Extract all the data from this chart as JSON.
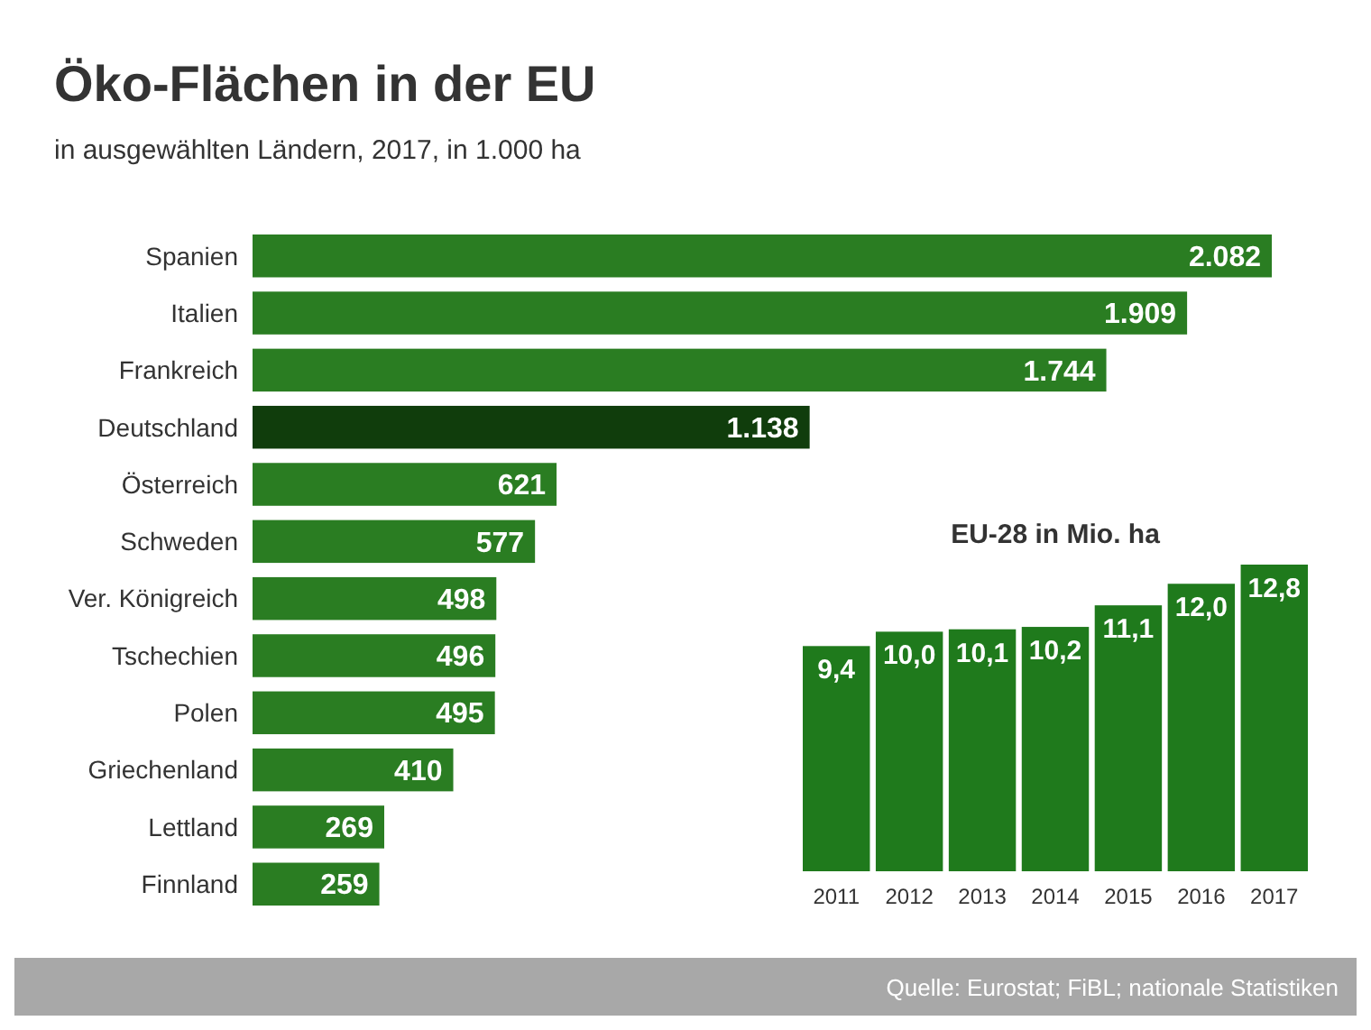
{
  "chart_data": [
    {
      "type": "bar",
      "orientation": "horizontal",
      "title": "Öko-Flächen in der EU",
      "subtitle": "in ausgewählten Ländern, 2017, in 1.000 ha",
      "categories": [
        "Spanien",
        "Italien",
        "Frankreich",
        "Deutschland",
        "Österreich",
        "Schweden",
        "Ver. Königreich",
        "Tschechien",
        "Polen",
        "Griechenland",
        "Lettland",
        "Finnland"
      ],
      "values": [
        2082,
        1909,
        1744,
        1138,
        621,
        577,
        498,
        496,
        495,
        410,
        269,
        259
      ],
      "value_labels": [
        "2.082",
        "1.909",
        "1.744",
        "1.138",
        "621",
        "577",
        "498",
        "496",
        "495",
        "410",
        "269",
        "259"
      ],
      "colors": [
        "#2a7d22",
        "#2a7d22",
        "#2a7d22",
        "#103d0c",
        "#2a7d22",
        "#2a7d22",
        "#2a7d22",
        "#2a7d22",
        "#2a7d22",
        "#2a7d22",
        "#2a7d22",
        "#2a7d22"
      ],
      "annotations": [
        "Quelle: Eurostat; FiBL; nationale Statistiken"
      ]
    },
    {
      "type": "bar",
      "title": "EU-28 in Mio. ha",
      "categories": [
        "2011",
        "2012",
        "2013",
        "2014",
        "2015",
        "2016",
        "2017"
      ],
      "values": [
        9.4,
        10.0,
        10.1,
        10.2,
        11.1,
        12.0,
        12.8
      ],
      "value_labels": [
        "9,4",
        "10,0",
        "10,1",
        "10,2",
        "11,1",
        "12,0",
        "12,8"
      ],
      "color": "#1f7a1c"
    }
  ]
}
